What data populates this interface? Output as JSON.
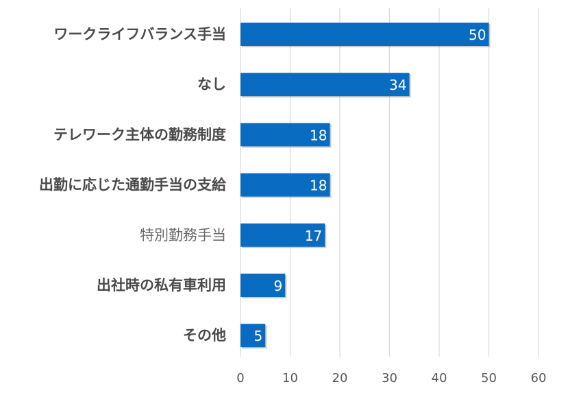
{
  "chart_data": {
    "type": "bar",
    "orientation": "horizontal",
    "categories": [
      "ワークライフバランス手当",
      "なし",
      "テレワーク主体の勤務制度",
      "出勤に応じた通勤手当の支給",
      "特別勤務手当",
      "出社時の私有車利用",
      "その他"
    ],
    "values": [
      50,
      34,
      18,
      18,
      17,
      9,
      5
    ],
    "bold_categories": [
      true,
      true,
      true,
      true,
      false,
      true,
      true
    ],
    "xlim": [
      0,
      60
    ],
    "xticks": [
      0,
      10,
      20,
      30,
      40,
      50,
      60
    ],
    "grid": true,
    "data_labels": true,
    "title": "",
    "xlabel": "",
    "ylabel": "",
    "colors": {
      "bar": "#0a6cc1",
      "bar_shadow": "#8c8c8c",
      "grid": "#d9d9d9",
      "label_bold": "#4a4a4a",
      "label_normal": "#6a6a6a",
      "tick": "#595959",
      "value_label": "#ffffff"
    }
  }
}
